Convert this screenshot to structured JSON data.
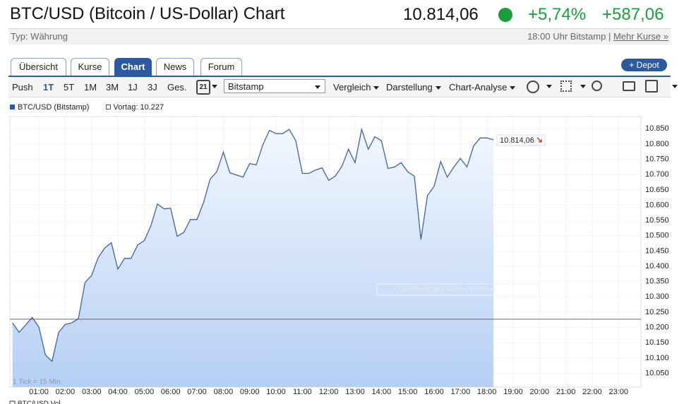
{
  "header": {
    "title": "BTC/USD (Bitcoin / US-Dollar) Chart",
    "price": "10.814,06",
    "change_pct": "+5,74%",
    "change_abs": "+587,06",
    "type": "Typ: Währung",
    "source": "18:00 Uhr Bitstamp |",
    "more": "Mehr Kurse »"
  },
  "tabs": [
    "Übersicht",
    "Kurse",
    "Chart",
    "News",
    "Forum"
  ],
  "depot_button": "+ Depot",
  "toolbar": {
    "periods": [
      "Push",
      "1T",
      "5T",
      "1M",
      "3M",
      "1J",
      "3J",
      "Ges."
    ],
    "calendar": "21",
    "exchange": "Bitstamp",
    "menus": [
      "Vergleich",
      "Darstellung",
      "Chart-Analyse"
    ]
  },
  "chart_data": {
    "type": "line",
    "series": [
      {
        "name": "BTC/USD (Bitstamp)",
        "color": "#3a64a8",
        "x": [
          0,
          0.25,
          0.5,
          0.75,
          1,
          1.25,
          1.5,
          1.75,
          2,
          2.25,
          2.5,
          2.75,
          3,
          3.25,
          3.5,
          3.75,
          4,
          4.25,
          4.5,
          4.75,
          5,
          5.25,
          5.5,
          5.75,
          6,
          6.25,
          6.5,
          6.75,
          7,
          7.25,
          7.5,
          7.75,
          8,
          8.25,
          8.5,
          8.75,
          9,
          9.25,
          9.5,
          9.75,
          10,
          10.25,
          10.5,
          10.75,
          11,
          11.25,
          11.5,
          11.75,
          12,
          12.25,
          12.5,
          12.75,
          13,
          13.25,
          13.5,
          13.75,
          14,
          14.25,
          14.5,
          14.75,
          15,
          15.25,
          15.5,
          15.75,
          16,
          16.25,
          16.5,
          16.75,
          17,
          17.25,
          17.5,
          17.75,
          18,
          18.25
        ],
        "values": [
          10215,
          10184,
          10208,
          10233,
          10201,
          10110,
          10089,
          10184,
          10210,
          10215,
          10229,
          10347,
          10370,
          10428,
          10460,
          10477,
          10391,
          10426,
          10426,
          10470,
          10484,
          10532,
          10604,
          10588,
          10590,
          10498,
          10511,
          10553,
          10553,
          10609,
          10685,
          10709,
          10773,
          10706,
          10699,
          10692,
          10736,
          10732,
          10797,
          10845,
          10834,
          10834,
          10848,
          10811,
          10704,
          10704,
          10715,
          10722,
          10681,
          10695,
          10727,
          10783,
          10739,
          10848,
          10783,
          10824,
          10811,
          10720,
          10725,
          10739,
          10709,
          10695,
          10488,
          10632,
          10662,
          10743,
          10692,
          10725,
          10753,
          10725,
          10794,
          10820,
          10820,
          10814
        ]
      }
    ],
    "last_label": "10.814,06",
    "reference": {
      "label": "Vortag: 10.227",
      "value": 10227
    },
    "xlim": [
      -0.1,
      23.85
    ],
    "ylim": [
      10005,
      10890
    ],
    "xticks": [
      {
        "value": 1,
        "label": "01:00"
      },
      {
        "value": 2,
        "label": "02:00"
      },
      {
        "value": 3,
        "label": "03:00"
      },
      {
        "value": 4,
        "label": "04:00"
      },
      {
        "value": 5,
        "label": "05:00"
      },
      {
        "value": 6,
        "label": "06:00"
      },
      {
        "value": 7,
        "label": "07:00"
      },
      {
        "value": 8,
        "label": "08:00"
      },
      {
        "value": 9,
        "label": "09:00"
      },
      {
        "value": 10,
        "label": "10:00"
      },
      {
        "value": 11,
        "label": "11:00"
      },
      {
        "value": 12,
        "label": "12:00"
      },
      {
        "value": 13,
        "label": "13:00"
      },
      {
        "value": 14,
        "label": "14:00"
      },
      {
        "value": 15,
        "label": "15:00"
      },
      {
        "value": 16,
        "label": "16:00"
      },
      {
        "value": 17,
        "label": "17:00"
      },
      {
        "value": 18,
        "label": "18:00"
      },
      {
        "value": 19,
        "label": "19:00"
      },
      {
        "value": 20,
        "label": "20:00"
      },
      {
        "value": 21,
        "label": "21:00"
      },
      {
        "value": 22,
        "label": "22:00"
      },
      {
        "value": 23,
        "label": "23:00"
      }
    ],
    "yticks": [
      {
        "value": 10050,
        "label": "10.050"
      },
      {
        "value": 10100,
        "label": "10.100"
      },
      {
        "value": 10150,
        "label": "10.150"
      },
      {
        "value": 10200,
        "label": "10.200"
      },
      {
        "value": 10250,
        "label": "10.250"
      },
      {
        "value": 10300,
        "label": "10.300"
      },
      {
        "value": 10350,
        "label": "10.350"
      },
      {
        "value": 10400,
        "label": "10.400"
      },
      {
        "value": 10450,
        "label": "10.450"
      },
      {
        "value": 10500,
        "label": "10.500"
      },
      {
        "value": 10550,
        "label": "10.550"
      },
      {
        "value": 10600,
        "label": "10.600"
      },
      {
        "value": 10650,
        "label": "10.650"
      },
      {
        "value": 10700,
        "label": "10.700"
      },
      {
        "value": 10750,
        "label": "10.750"
      },
      {
        "value": 10800,
        "label": "10.800"
      },
      {
        "value": 10850,
        "label": "10.850"
      }
    ],
    "grid": true,
    "tick_note": "1 Tick = 15 Min.",
    "watermark": "Rechteckiges Ausschneiden",
    "volume_label": "BTC/USD Vol"
  }
}
